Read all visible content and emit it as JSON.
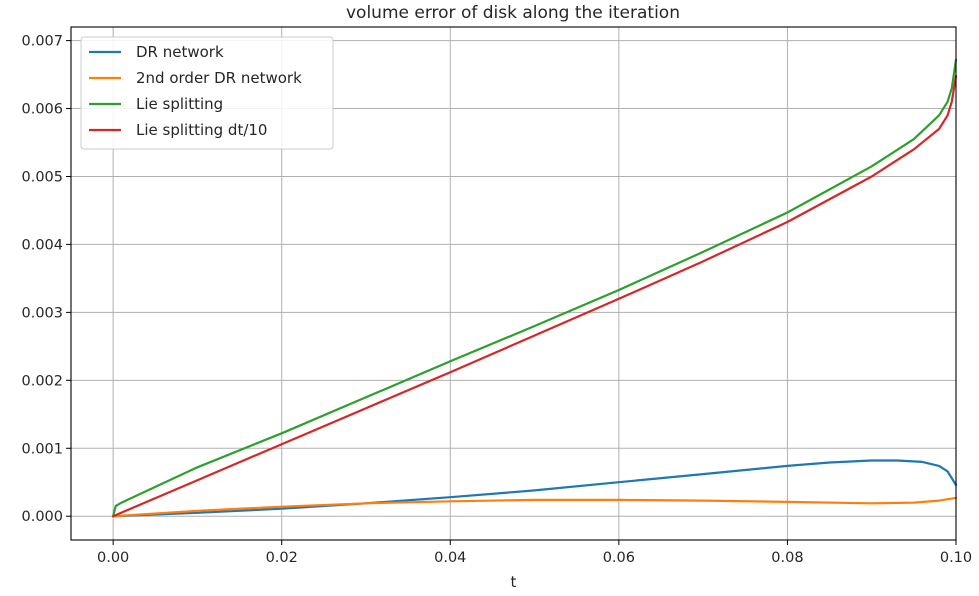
{
  "chart_data": {
    "type": "line",
    "title": "volume error of disk along the iteration",
    "xlabel": "t",
    "ylabel": "",
    "xlim": [
      -0.005,
      0.1
    ],
    "ylim": [
      -0.00035,
      0.0072
    ],
    "xticks": [
      0.0,
      0.02,
      0.04,
      0.06,
      0.08,
      0.1
    ],
    "xtick_labels": [
      "0.00",
      "0.02",
      "0.04",
      "0.06",
      "0.08",
      "0.10"
    ],
    "yticks": [
      0.0,
      0.001,
      0.002,
      0.003,
      0.004,
      0.005,
      0.006,
      0.007
    ],
    "ytick_labels": [
      "0.000",
      "0.001",
      "0.002",
      "0.003",
      "0.004",
      "0.005",
      "0.006",
      "0.007"
    ],
    "grid": true,
    "legend_position": "top-left",
    "series": [
      {
        "name": "DR network",
        "color": "#1f77b4",
        "points": [
          [
            0.0,
            0.0
          ],
          [
            0.01,
            5e-05
          ],
          [
            0.02,
            0.00011
          ],
          [
            0.03,
            0.00019
          ],
          [
            0.04,
            0.00028
          ],
          [
            0.05,
            0.00038
          ],
          [
            0.06,
            0.0005
          ],
          [
            0.07,
            0.00062
          ],
          [
            0.08,
            0.00074
          ],
          [
            0.085,
            0.00079
          ],
          [
            0.09,
            0.00082
          ],
          [
            0.093,
            0.00082
          ],
          [
            0.096,
            0.0008
          ],
          [
            0.098,
            0.00074
          ],
          [
            0.099,
            0.00066
          ],
          [
            0.1,
            0.00046
          ]
        ]
      },
      {
        "name": "2nd order DR network",
        "color": "#ff7f0e",
        "points": [
          [
            0.0,
            0.0
          ],
          [
            0.01,
            8e-05
          ],
          [
            0.02,
            0.00014
          ],
          [
            0.03,
            0.00019
          ],
          [
            0.04,
            0.00022
          ],
          [
            0.05,
            0.00024
          ],
          [
            0.06,
            0.00024
          ],
          [
            0.07,
            0.00023
          ],
          [
            0.08,
            0.00021
          ],
          [
            0.09,
            0.00019
          ],
          [
            0.095,
            0.0002
          ],
          [
            0.098,
            0.00023
          ],
          [
            0.1,
            0.00027
          ]
        ]
      },
      {
        "name": "Lie splitting",
        "color": "#2ca02c",
        "points": [
          [
            0.0,
            0.0
          ],
          [
            0.0003,
            0.00015
          ],
          [
            0.001,
            0.0002
          ],
          [
            0.01,
            0.00072
          ],
          [
            0.02,
            0.00122
          ],
          [
            0.03,
            0.00175
          ],
          [
            0.04,
            0.00228
          ],
          [
            0.05,
            0.0028
          ],
          [
            0.06,
            0.00333
          ],
          [
            0.07,
            0.00389
          ],
          [
            0.08,
            0.00447
          ],
          [
            0.09,
            0.00515
          ],
          [
            0.095,
            0.00555
          ],
          [
            0.098,
            0.0059
          ],
          [
            0.099,
            0.0061
          ],
          [
            0.0995,
            0.0063
          ],
          [
            0.1,
            0.00672
          ]
        ]
      },
      {
        "name": "Lie splitting dt/10",
        "color": "#d62728",
        "points": [
          [
            0.0,
            0.0
          ],
          [
            0.01,
            0.00053
          ],
          [
            0.02,
            0.00106
          ],
          [
            0.03,
            0.00159
          ],
          [
            0.04,
            0.00212
          ],
          [
            0.05,
            0.00266
          ],
          [
            0.06,
            0.0032
          ],
          [
            0.07,
            0.00375
          ],
          [
            0.08,
            0.00433
          ],
          [
            0.09,
            0.005
          ],
          [
            0.095,
            0.0054
          ],
          [
            0.098,
            0.0057
          ],
          [
            0.099,
            0.0059
          ],
          [
            0.0995,
            0.0061
          ],
          [
            0.1,
            0.00648
          ]
        ]
      }
    ]
  }
}
